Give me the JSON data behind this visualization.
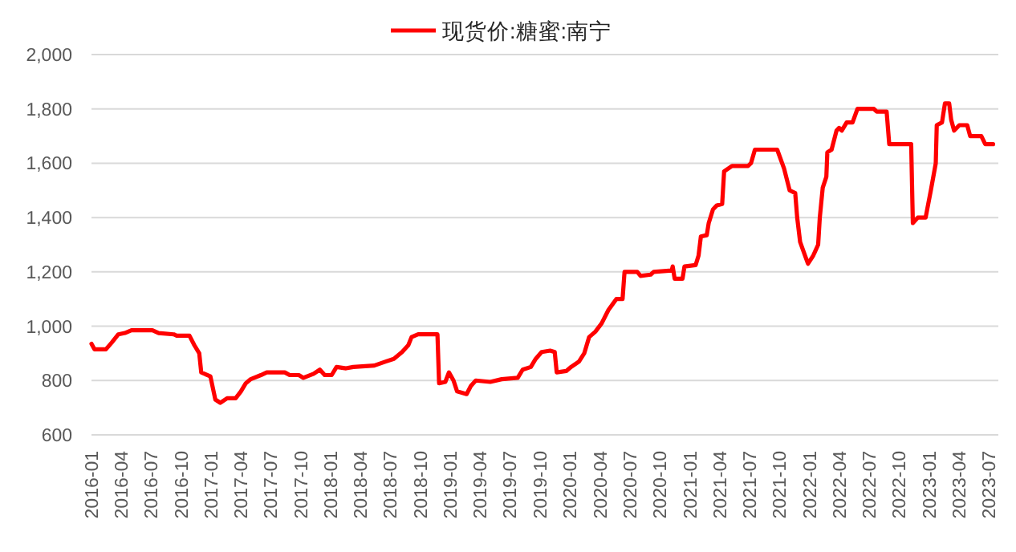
{
  "chart_data": {
    "type": "line",
    "x": [
      "2016-01-01",
      "2016-01-10",
      "2016-02-14",
      "2016-03-03",
      "2016-03-23",
      "2016-04-12",
      "2016-05-02",
      "2016-07-05",
      "2016-07-24",
      "2016-09-08",
      "2016-09-17",
      "2016-10-26",
      "2016-11-10",
      "2016-11-25",
      "2016-12-01",
      "2016-12-29",
      "2017-01-13",
      "2017-01-28",
      "2017-02-18",
      "2017-03-16",
      "2017-04-01",
      "2017-04-16",
      "2017-05-01",
      "2017-06-01",
      "2017-06-19",
      "2017-08-13",
      "2017-08-28",
      "2017-09-25",
      "2017-10-09",
      "2017-11-09",
      "2017-11-28",
      "2017-12-13",
      "2018-01-03",
      "2018-01-18",
      "2018-02-16",
      "2018-03-10",
      "2018-05-13",
      "2018-06-17",
      "2018-07-12",
      "2018-08-06",
      "2018-08-25",
      "2018-09-04",
      "2018-09-24",
      "2018-11-22",
      "2018-11-27",
      "2018-12-16",
      "2018-12-27",
      "2019-01-10",
      "2019-01-21",
      "2019-02-19",
      "2019-03-04",
      "2019-03-19",
      "2019-05-02",
      "2019-06-06",
      "2019-07-25",
      "2019-08-09",
      "2019-09-03",
      "2019-09-18",
      "2019-10-06",
      "2019-11-01",
      "2019-11-15",
      "2019-11-21",
      "2019-12-20",
      "2020-01-04",
      "2020-01-28",
      "2020-02-13",
      "2020-02-28",
      "2020-03-18",
      "2020-04-06",
      "2020-04-27",
      "2020-05-21",
      "2020-06-09",
      "2020-06-15",
      "2020-07-24",
      "2020-08-03",
      "2020-09-03",
      "2020-09-12",
      "2020-11-06",
      "2020-11-09",
      "2020-11-15",
      "2020-12-09",
      "2020-12-15",
      "2021-01-18",
      "2021-01-27",
      "2021-02-03",
      "2021-02-21",
      "2021-02-27",
      "2021-03-12",
      "2021-03-24",
      "2021-04-09",
      "2021-04-15",
      "2021-05-09",
      "2021-06-27",
      "2021-07-06",
      "2021-07-18",
      "2021-09-24",
      "2021-10-15",
      "2021-11-01",
      "2021-11-18",
      "2021-11-24",
      "2021-12-03",
      "2021-12-18",
      "2021-12-27",
      "2022-01-12",
      "2022-01-27",
      "2022-02-01",
      "2022-02-10",
      "2022-02-21",
      "2022-02-24",
      "2022-03-09",
      "2022-03-24",
      "2022-04-01",
      "2022-04-09",
      "2022-04-24",
      "2022-05-12",
      "2022-05-27",
      "2022-07-16",
      "2022-07-25",
      "2022-08-24",
      "2022-09-01",
      "2022-11-07",
      "2022-11-12",
      "2022-11-27",
      "2022-12-21",
      "2023-01-06",
      "2023-01-21",
      "2023-01-24",
      "2023-02-09",
      "2023-02-18",
      "2023-03-03",
      "2023-03-09",
      "2023-03-18",
      "2023-04-03",
      "2023-04-27",
      "2023-05-06",
      "2023-06-09",
      "2023-06-21",
      "2023-07-15"
    ],
    "series": [
      {
        "name": "现货价:糖蜜:南宁",
        "color": "#ff0000",
        "values": [
          935,
          915,
          915,
          940,
          970,
          975,
          985,
          985,
          975,
          970,
          965,
          965,
          930,
          900,
          830,
          815,
          730,
          718,
          735,
          735,
          760,
          790,
          805,
          820,
          830,
          830,
          820,
          820,
          810,
          825,
          840,
          820,
          820,
          850,
          845,
          850,
          855,
          870,
          880,
          905,
          930,
          960,
          970,
          970,
          790,
          795,
          830,
          800,
          760,
          750,
          780,
          800,
          795,
          805,
          810,
          840,
          850,
          880,
          905,
          910,
          905,
          830,
          835,
          850,
          870,
          900,
          960,
          980,
          1010,
          1060,
          1100,
          1100,
          1200,
          1200,
          1185,
          1190,
          1200,
          1205,
          1220,
          1175,
          1175,
          1220,
          1225,
          1260,
          1330,
          1335,
          1380,
          1430,
          1445,
          1450,
          1570,
          1590,
          1590,
          1600,
          1650,
          1650,
          1580,
          1500,
          1490,
          1400,
          1310,
          1260,
          1230,
          1260,
          1300,
          1400,
          1510,
          1550,
          1640,
          1650,
          1720,
          1730,
          1720,
          1750,
          1750,
          1800,
          1800,
          1790,
          1790,
          1670,
          1670,
          1380,
          1400,
          1400,
          1500,
          1600,
          1740,
          1750,
          1820,
          1820,
          1760,
          1720,
          1740,
          1740,
          1700,
          1700,
          1670,
          1670
        ]
      }
    ],
    "xlim": [
      "2016-01-01",
      "2023-07-31"
    ],
    "xticks": [
      {
        "value": "2016-01",
        "label": "2016-01"
      },
      {
        "value": "2016-04",
        "label": "2016-04"
      },
      {
        "value": "2016-07",
        "label": "2016-07"
      },
      {
        "value": "2016-10",
        "label": "2016-10"
      },
      {
        "value": "2017-01",
        "label": "2017-01"
      },
      {
        "value": "2017-04",
        "label": "2017-04"
      },
      {
        "value": "2017-07",
        "label": "2017-07"
      },
      {
        "value": "2017-10",
        "label": "2017-10"
      },
      {
        "value": "2018-01",
        "label": "2018-01"
      },
      {
        "value": "2018-04",
        "label": "2018-04"
      },
      {
        "value": "2018-07",
        "label": "2018-07"
      },
      {
        "value": "2018-10",
        "label": "2018-10"
      },
      {
        "value": "2019-01",
        "label": "2019-01"
      },
      {
        "value": "2019-04",
        "label": "2019-04"
      },
      {
        "value": "2019-07",
        "label": "2019-07"
      },
      {
        "value": "2019-10",
        "label": "2019-10"
      },
      {
        "value": "2020-01",
        "label": "2020-01"
      },
      {
        "value": "2020-04",
        "label": "2020-04"
      },
      {
        "value": "2020-07",
        "label": "2020-07"
      },
      {
        "value": "2020-10",
        "label": "2020-10"
      },
      {
        "value": "2021-01",
        "label": "2021-01"
      },
      {
        "value": "2021-04",
        "label": "2021-04"
      },
      {
        "value": "2021-07",
        "label": "2021-07"
      },
      {
        "value": "2021-10",
        "label": "2021-10"
      },
      {
        "value": "2022-01",
        "label": "2022-01"
      },
      {
        "value": "2022-04",
        "label": "2022-04"
      },
      {
        "value": "2022-07",
        "label": "2022-07"
      },
      {
        "value": "2022-10",
        "label": "2022-10"
      },
      {
        "value": "2023-01",
        "label": "2023-01"
      },
      {
        "value": "2023-04",
        "label": "2023-04"
      },
      {
        "value": "2023-07",
        "label": "2023-07"
      }
    ],
    "ylim": [
      600,
      2000
    ],
    "yticks": [
      {
        "value": 600,
        "label": "600"
      },
      {
        "value": 800,
        "label": "800"
      },
      {
        "value": 1000,
        "label": "1,000"
      },
      {
        "value": 1200,
        "label": "1,200"
      },
      {
        "value": 1400,
        "label": "1,400"
      },
      {
        "value": 1600,
        "label": "1,600"
      },
      {
        "value": 1800,
        "label": "1,800"
      },
      {
        "value": 2000,
        "label": "2,000"
      }
    ],
    "grid": "y",
    "legend": "top",
    "marker": "none",
    "line_style": "solid"
  }
}
